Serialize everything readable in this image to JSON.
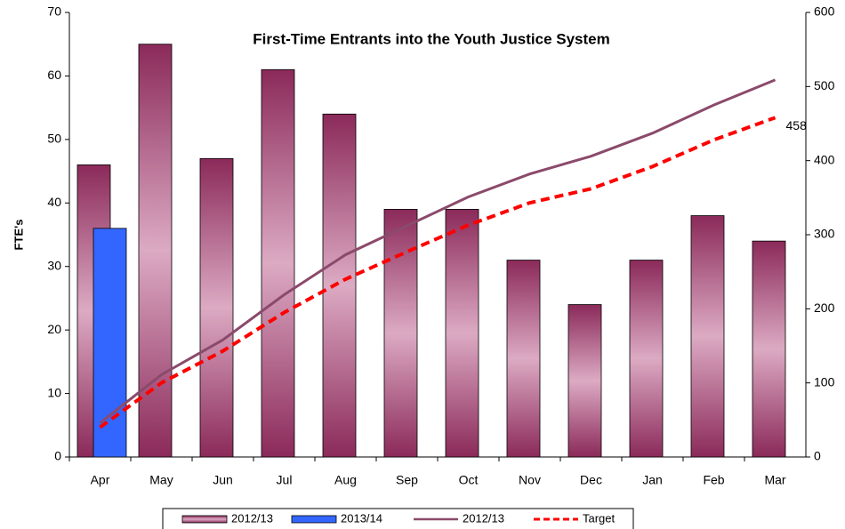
{
  "chart_data": {
    "type": "bar-line",
    "title": "First-Time Entrants into the Youth Justice System",
    "ylabel": "FTE's",
    "categories": [
      "Apr",
      "May",
      "Jun",
      "Jul",
      "Aug",
      "Sep",
      "Oct",
      "Nov",
      "Dec",
      "Jan",
      "Feb",
      "Mar"
    ],
    "series": [
      {
        "name": "2012/13",
        "type": "bar",
        "color": "#8b2a5a",
        "values": [
          46,
          65,
          47,
          61,
          54,
          39,
          39,
          31,
          24,
          31,
          38,
          34
        ]
      },
      {
        "name": "2013/14",
        "type": "bar",
        "color": "#3366ff",
        "values": [
          36,
          null,
          null,
          null,
          null,
          null,
          null,
          null,
          null,
          null,
          null,
          null
        ]
      },
      {
        "name": "2012/13",
        "type": "line",
        "axis": "y2",
        "color": "#8b4a6b",
        "values": [
          46,
          111,
          158,
          219,
          273,
          312,
          351,
          382,
          406,
          437,
          475,
          509
        ]
      },
      {
        "name": "Target",
        "type": "line",
        "axis": "y2",
        "color": "#ff0000",
        "dashed": true,
        "values": [
          40,
          100,
          143,
          195,
          240,
          277,
          313,
          343,
          362,
          392,
          428,
          458
        ],
        "value_labels": [
          null,
          null,
          null,
          null,
          null,
          null,
          null,
          null,
          null,
          null,
          null,
          "458"
        ]
      }
    ],
    "ylim": [
      0,
      70
    ],
    "yticks": [
      0,
      10,
      20,
      30,
      40,
      50,
      60,
      70
    ],
    "y2lim": [
      0,
      600
    ],
    "y2ticks": [
      0,
      100,
      200,
      300,
      400,
      500,
      600
    ],
    "legend": "bottom"
  }
}
